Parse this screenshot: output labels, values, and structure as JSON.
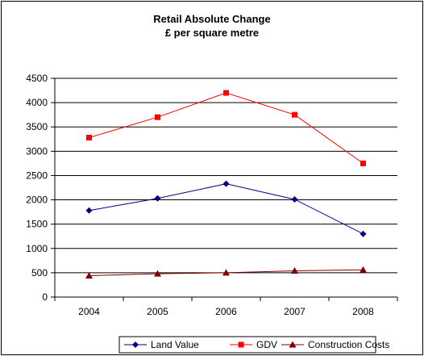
{
  "chart_data": {
    "type": "line",
    "title": "Retail Absolute Change",
    "subtitle": "£ per square metre",
    "xlabel": "",
    "ylabel": "",
    "categories": [
      "2004",
      "2005",
      "2006",
      "2007",
      "2008"
    ],
    "ylim": [
      0,
      4500
    ],
    "yticks": [
      0,
      500,
      1000,
      1500,
      2000,
      2500,
      3000,
      3500,
      4000,
      4500
    ],
    "grid": true,
    "legend_position": "bottom",
    "series": [
      {
        "name": "Land Value",
        "values": [
          1780,
          2030,
          2330,
          2010,
          1300
        ],
        "color": "#000080",
        "marker": "diamond"
      },
      {
        "name": "GDV",
        "values": [
          3280,
          3700,
          4200,
          3750,
          2750
        ],
        "color": "#ff0000",
        "marker": "square"
      },
      {
        "name": "Construction Costs",
        "values": [
          440,
          480,
          500,
          540,
          560
        ],
        "color": "#800000",
        "marker": "triangle"
      }
    ]
  }
}
